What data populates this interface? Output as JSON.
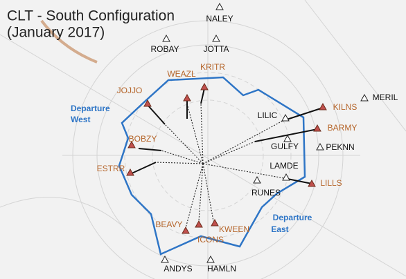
{
  "title": [
    "CLT - South Configuration",
    "(January 2017)"
  ],
  "areas": [
    {
      "lines": [
        "Departure",
        "West"
      ]
    },
    {
      "lines": [
        "Departure",
        "East"
      ]
    }
  ],
  "departure_fixes": [
    "WEAZL",
    "KRITR",
    "JOJJO",
    "KILNS",
    "BARMY",
    "BOBZY",
    "ESTRR",
    "LILLS",
    "BEAVY",
    "ICONS",
    "KWEEN"
  ],
  "other_fixes": [
    "NALEY",
    "ROBAY",
    "JOTTA",
    "MERIL",
    "LILIC",
    "GULFY",
    "PEKNN",
    "LAMDE",
    "RUNES",
    "ANDYS",
    "HAMLN"
  ]
}
